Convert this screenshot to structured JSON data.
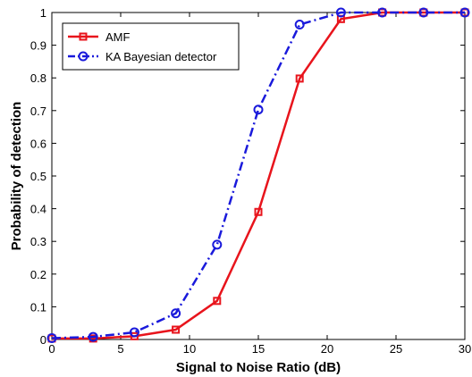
{
  "chart_data": {
    "type": "line",
    "title": "",
    "xlabel": "Signal to Noise Ratio (dB)",
    "ylabel": "Probability of detection",
    "xlim": [
      0,
      30
    ],
    "ylim": [
      0,
      1
    ],
    "xticks": [
      0,
      5,
      10,
      15,
      20,
      25,
      30
    ],
    "yticks": [
      0,
      0.1,
      0.2,
      0.3,
      0.4,
      0.5,
      0.6,
      0.7,
      0.8,
      0.9,
      1
    ],
    "xtick_labels": [
      "0",
      "5",
      "10",
      "15",
      "20",
      "25",
      "30"
    ],
    "ytick_labels": [
      "0",
      "0.1",
      "0.2",
      "0.3",
      "0.4",
      "0.5",
      "0.6",
      "0.7",
      "0.8",
      "0.9",
      "1"
    ],
    "grid": false,
    "legend_position": "top-left",
    "x": [
      0,
      3,
      6,
      9,
      12,
      15,
      18,
      21,
      24,
      27,
      30
    ],
    "series": [
      {
        "name": "AMF",
        "values": [
          0.003,
          0.003,
          0.01,
          0.03,
          0.118,
          0.39,
          0.798,
          0.98,
          1.0,
          1.0,
          1.0
        ],
        "color": "#e8141c",
        "line_style": "solid",
        "marker": "square"
      },
      {
        "name": "KA Bayesian detector",
        "values": [
          0.004,
          0.008,
          0.022,
          0.08,
          0.29,
          0.703,
          0.963,
          1.0,
          1.0,
          1.0,
          1.0
        ],
        "color": "#1a1adb",
        "line_style": "dash-dot",
        "marker": "circle"
      }
    ]
  }
}
